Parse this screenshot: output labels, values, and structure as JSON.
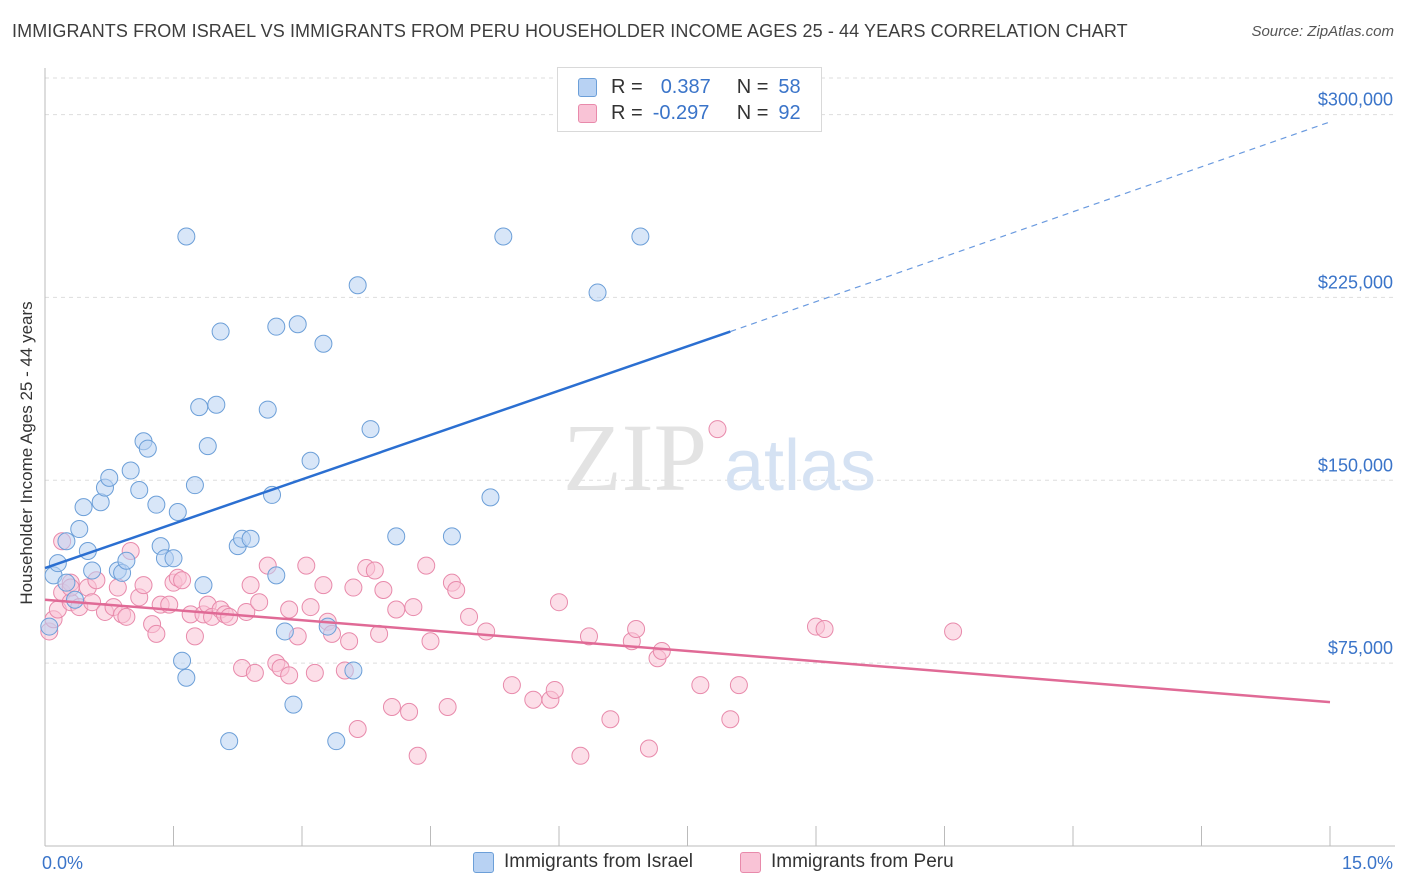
{
  "header": {
    "title": "IMMIGRANTS FROM ISRAEL VS IMMIGRANTS FROM PERU HOUSEHOLDER INCOME AGES 25 - 44 YEARS CORRELATION CHART",
    "source": "Source: ZipAtlas.com"
  },
  "watermark": {
    "zip": "ZIP",
    "atlas": "atlas"
  },
  "legend": {
    "r_label": "R =",
    "n_label": "N =",
    "israel": {
      "r": "0.387",
      "n": "58"
    },
    "peru": {
      "r": "-0.297",
      "n": "92"
    }
  },
  "colors": {
    "israel_fill": "#b8d2f3",
    "israel_stroke": "#6c9fd8",
    "israel_line": "#2b6fd1",
    "peru_fill": "#f9c3d6",
    "peru_stroke": "#e88aab",
    "peru_line": "#e06a96",
    "axis_label": "#3a74c9",
    "grid": "#dddddd"
  },
  "chart_data": {
    "type": "scatter",
    "title": "IMMIGRANTS FROM ISRAEL VS IMMIGRANTS FROM PERU HOUSEHOLDER INCOME AGES 25 - 44 YEARS CORRELATION CHART",
    "xlabel": "",
    "ylabel": "Householder Income Ages 25 - 44 years",
    "xlim": [
      0,
      15
    ],
    "ylim": [
      0,
      315000
    ],
    "x_tick_labels": [
      "0.0%",
      "15.0%"
    ],
    "y_ticks": [
      75000,
      150000,
      225000,
      300000
    ],
    "y_tick_labels": [
      "$75,000",
      "$150,000",
      "$225,000",
      "$300,000"
    ],
    "grid": true,
    "legend_position": "top-center",
    "series": [
      {
        "name": "Immigrants from Israel",
        "color": "#b8d2f3",
        "trend": {
          "x": [
            0.0,
            8.0,
            15.0
          ],
          "y": [
            114000,
            211000,
            297000
          ],
          "solid_until": 8.0
        },
        "points": [
          [
            0.05,
            90000
          ],
          [
            0.1,
            111000
          ],
          [
            0.15,
            116000
          ],
          [
            0.25,
            125000
          ],
          [
            0.25,
            108000
          ],
          [
            0.35,
            101000
          ],
          [
            0.4,
            130000
          ],
          [
            0.45,
            139000
          ],
          [
            0.5,
            121000
          ],
          [
            0.55,
            113000
          ],
          [
            0.65,
            141000
          ],
          [
            0.7,
            147000
          ],
          [
            0.75,
            151000
          ],
          [
            0.85,
            113000
          ],
          [
            0.9,
            112000
          ],
          [
            0.95,
            117000
          ],
          [
            1.0,
            154000
          ],
          [
            1.1,
            146000
          ],
          [
            1.15,
            166000
          ],
          [
            1.2,
            163000
          ],
          [
            1.3,
            140000
          ],
          [
            1.35,
            123000
          ],
          [
            1.4,
            118000
          ],
          [
            1.5,
            118000
          ],
          [
            1.55,
            137000
          ],
          [
            1.6,
            76000
          ],
          [
            1.65,
            69000
          ],
          [
            1.65,
            250000
          ],
          [
            1.75,
            148000
          ],
          [
            1.85,
            107000
          ],
          [
            1.8,
            180000
          ],
          [
            1.9,
            164000
          ],
          [
            2.0,
            181000
          ],
          [
            2.05,
            211000
          ],
          [
            2.15,
            43000
          ],
          [
            2.25,
            123000
          ],
          [
            2.3,
            126000
          ],
          [
            2.4,
            126000
          ],
          [
            2.6,
            179000
          ],
          [
            2.65,
            144000
          ],
          [
            2.7,
            111000
          ],
          [
            2.7,
            213000
          ],
          [
            2.8,
            88000
          ],
          [
            2.9,
            58000
          ],
          [
            2.95,
            214000
          ],
          [
            3.1,
            158000
          ],
          [
            3.25,
            206000
          ],
          [
            3.3,
            90000
          ],
          [
            3.4,
            43000
          ],
          [
            3.65,
            230000
          ],
          [
            3.6,
            72000
          ],
          [
            3.8,
            171000
          ],
          [
            4.1,
            127000
          ],
          [
            4.75,
            127000
          ],
          [
            5.2,
            143000
          ],
          [
            5.35,
            250000
          ],
          [
            6.45,
            227000
          ],
          [
            6.95,
            250000
          ]
        ]
      },
      {
        "name": "Immigrants from Peru",
        "color": "#f9c3d6",
        "trend": {
          "x": [
            0.0,
            15.0
          ],
          "y": [
            101000,
            59000
          ]
        },
        "points": [
          [
            0.05,
            88000
          ],
          [
            0.1,
            93000
          ],
          [
            0.15,
            97000
          ],
          [
            0.2,
            104000
          ],
          [
            0.3,
            108000
          ],
          [
            0.3,
            100000
          ],
          [
            0.4,
            98000
          ],
          [
            0.5,
            106000
          ],
          [
            0.55,
            100000
          ],
          [
            0.6,
            109000
          ],
          [
            0.7,
            96000
          ],
          [
            0.8,
            98000
          ],
          [
            0.85,
            106000
          ],
          [
            0.9,
            95000
          ],
          [
            0.95,
            94000
          ],
          [
            1.0,
            121000
          ],
          [
            1.1,
            102000
          ],
          [
            1.15,
            107000
          ],
          [
            1.25,
            91000
          ],
          [
            1.3,
            87000
          ],
          [
            1.35,
            99000
          ],
          [
            1.45,
            99000
          ],
          [
            1.5,
            108000
          ],
          [
            1.55,
            110000
          ],
          [
            1.6,
            109000
          ],
          [
            1.7,
            95000
          ],
          [
            1.75,
            86000
          ],
          [
            1.85,
            95000
          ],
          [
            1.9,
            99000
          ],
          [
            1.95,
            94000
          ],
          [
            2.05,
            97000
          ],
          [
            2.1,
            95000
          ],
          [
            2.15,
            94000
          ],
          [
            2.3,
            73000
          ],
          [
            2.35,
            96000
          ],
          [
            2.4,
            107000
          ],
          [
            2.45,
            71000
          ],
          [
            2.5,
            100000
          ],
          [
            2.6,
            115000
          ],
          [
            2.7,
            75000
          ],
          [
            2.75,
            73000
          ],
          [
            2.85,
            97000
          ],
          [
            2.85,
            70000
          ],
          [
            2.95,
            86000
          ],
          [
            3.05,
            115000
          ],
          [
            3.1,
            98000
          ],
          [
            3.15,
            71000
          ],
          [
            3.25,
            107000
          ],
          [
            3.3,
            92000
          ],
          [
            3.35,
            87000
          ],
          [
            3.5,
            72000
          ],
          [
            3.55,
            84000
          ],
          [
            3.6,
            106000
          ],
          [
            3.65,
            48000
          ],
          [
            3.75,
            114000
          ],
          [
            3.85,
            113000
          ],
          [
            3.9,
            87000
          ],
          [
            3.95,
            105000
          ],
          [
            4.05,
            57000
          ],
          [
            4.1,
            97000
          ],
          [
            4.25,
            55000
          ],
          [
            4.3,
            98000
          ],
          [
            4.35,
            37000
          ],
          [
            4.5,
            84000
          ],
          [
            4.45,
            115000
          ],
          [
            4.7,
            57000
          ],
          [
            4.75,
            108000
          ],
          [
            4.8,
            105000
          ],
          [
            4.95,
            94000
          ],
          [
            5.15,
            88000
          ],
          [
            5.45,
            66000
          ],
          [
            5.7,
            60000
          ],
          [
            5.9,
            60000
          ],
          [
            5.95,
            64000
          ],
          [
            6.0,
            100000
          ],
          [
            6.25,
            37000
          ],
          [
            6.35,
            86000
          ],
          [
            6.6,
            52000
          ],
          [
            6.85,
            84000
          ],
          [
            6.9,
            89000
          ],
          [
            7.05,
            40000
          ],
          [
            7.15,
            77000
          ],
          [
            7.2,
            80000
          ],
          [
            7.65,
            66000
          ],
          [
            7.85,
            171000
          ],
          [
            8.0,
            52000
          ],
          [
            8.1,
            66000
          ],
          [
            9.0,
            90000
          ],
          [
            9.1,
            89000
          ],
          [
            10.6,
            88000
          ],
          [
            0.2,
            125000
          ],
          [
            0.3,
            106000
          ]
        ]
      }
    ]
  },
  "bottom_legend": {
    "israel_label": "Immigrants from Israel",
    "peru_label": "Immigrants from Peru"
  }
}
